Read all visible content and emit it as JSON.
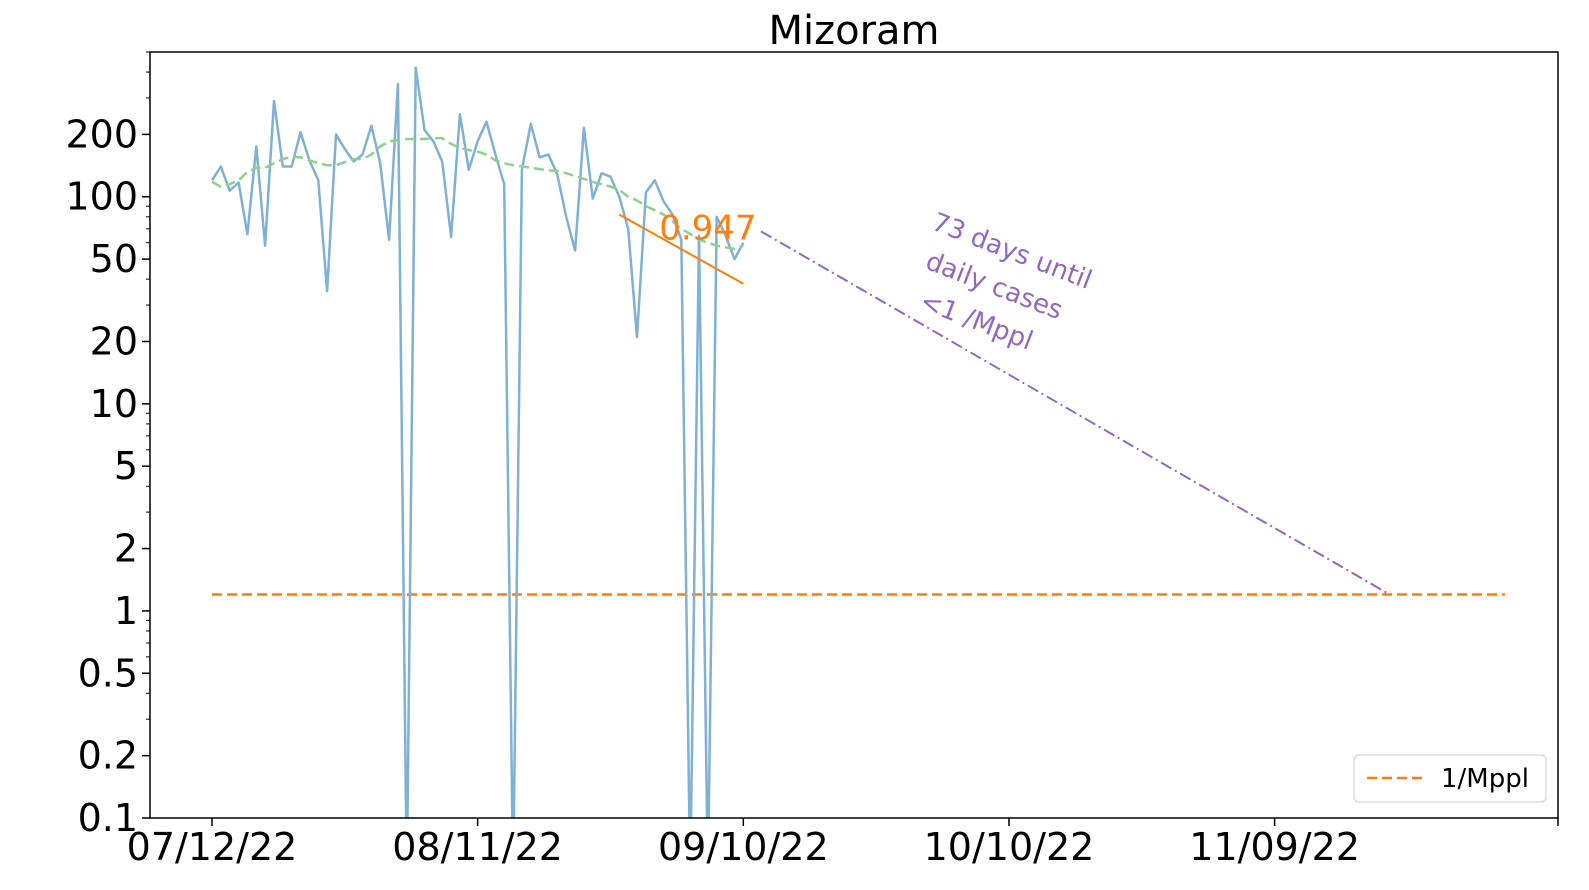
{
  "chart_data": {
    "type": "line",
    "title": "Mizoram",
    "xlabel": "",
    "ylabel": "",
    "y_scale": "log",
    "ylim": [
      0.1,
      500
    ],
    "xlim": [
      "2022-07-05",
      "2022-12-11"
    ],
    "x_ticks": [
      "07/12/22",
      "08/11/22",
      "09/10/22",
      "10/10/22",
      "11/09/22"
    ],
    "y_ticks": [
      {
        "value": 0.1,
        "label": "0.1"
      },
      {
        "value": 0.2,
        "label": "0.2"
      },
      {
        "value": 0.5,
        "label": "0.5"
      },
      {
        "value": 1,
        "label": "1"
      },
      {
        "value": 2,
        "label": "2"
      },
      {
        "value": 5,
        "label": "5"
      },
      {
        "value": 10,
        "label": "10"
      },
      {
        "value": 20,
        "label": "20"
      },
      {
        "value": 50,
        "label": "50"
      },
      {
        "value": 100,
        "label": "100"
      },
      {
        "value": 200,
        "label": "200"
      }
    ],
    "grid": false,
    "legend": {
      "placement": "bottom-right",
      "entries": [
        "1/Mppl"
      ]
    },
    "series": [
      {
        "key": "daily",
        "color": "#7fb0d5",
        "style": "solid",
        "x_start": "2022-07-12",
        "values": [
          120,
          140,
          107,
          117,
          66,
          175,
          58,
          290,
          140,
          140,
          205,
          150,
          120,
          35,
          200,
          170,
          148,
          160,
          220,
          145,
          62,
          350,
          0.05,
          420,
          210,
          185,
          148,
          64,
          250,
          135,
          185,
          230,
          160,
          115,
          0.05,
          135,
          225,
          155,
          160,
          128,
          80,
          55,
          215,
          98,
          130,
          125,
          100,
          70,
          21,
          105,
          120,
          95,
          82,
          62,
          0.05,
          65,
          0.05,
          80,
          65,
          50,
          60
        ]
      },
      {
        "key": "smoothed",
        "color": "#8fcf8f",
        "style": "dashed",
        "x_start": "2022-07-12",
        "values": [
          118,
          112,
          115,
          120,
          132,
          138,
          138,
          145,
          152,
          156,
          155,
          150,
          145,
          142,
          142,
          147,
          152,
          152,
          160,
          175,
          185,
          188,
          190,
          190,
          190,
          192,
          192,
          180,
          172,
          168,
          165,
          160,
          150,
          145,
          142,
          140,
          138,
          136,
          134,
          133,
          130,
          126,
          122,
          118,
          115,
          112,
          108,
          100,
          96,
          90,
          86,
          82,
          76,
          70,
          66,
          62,
          60,
          58,
          57,
          56,
          58
        ]
      },
      {
        "key": "fit",
        "color": "#ff7f0e",
        "style": "solid",
        "x": [
          "2022-08-27",
          "2022-09-10"
        ],
        "values": [
          82,
          38
        ]
      },
      {
        "key": "projection",
        "color": "#9467bd",
        "style": "dashdot",
        "x": [
          "2022-09-12",
          "2022-11-22"
        ],
        "values": [
          68,
          1.2
        ]
      },
      {
        "key": "mppl",
        "name": "1/Mppl",
        "color": "#ff7f0e",
        "style": "dashed",
        "x": [
          "2022-07-12",
          "2022-12-05"
        ],
        "values": [
          1.2,
          1.2
        ]
      }
    ],
    "annotations": [
      {
        "key": "rate",
        "text": "0.947",
        "color": "#ff7f0e",
        "x": "2022-09-06",
        "y": 62
      },
      {
        "key": "days_line1",
        "text": "73 days until",
        "color": "#9467bd",
        "x": "2022-10-10",
        "y": 50
      },
      {
        "key": "days_line2",
        "text": "daily cases",
        "color": "#9467bd",
        "x": "2022-10-08",
        "y": 34
      },
      {
        "key": "days_line3",
        "text": "<1 /Mppl",
        "color": "#9467bd",
        "x": "2022-10-06",
        "y": 23
      }
    ]
  }
}
